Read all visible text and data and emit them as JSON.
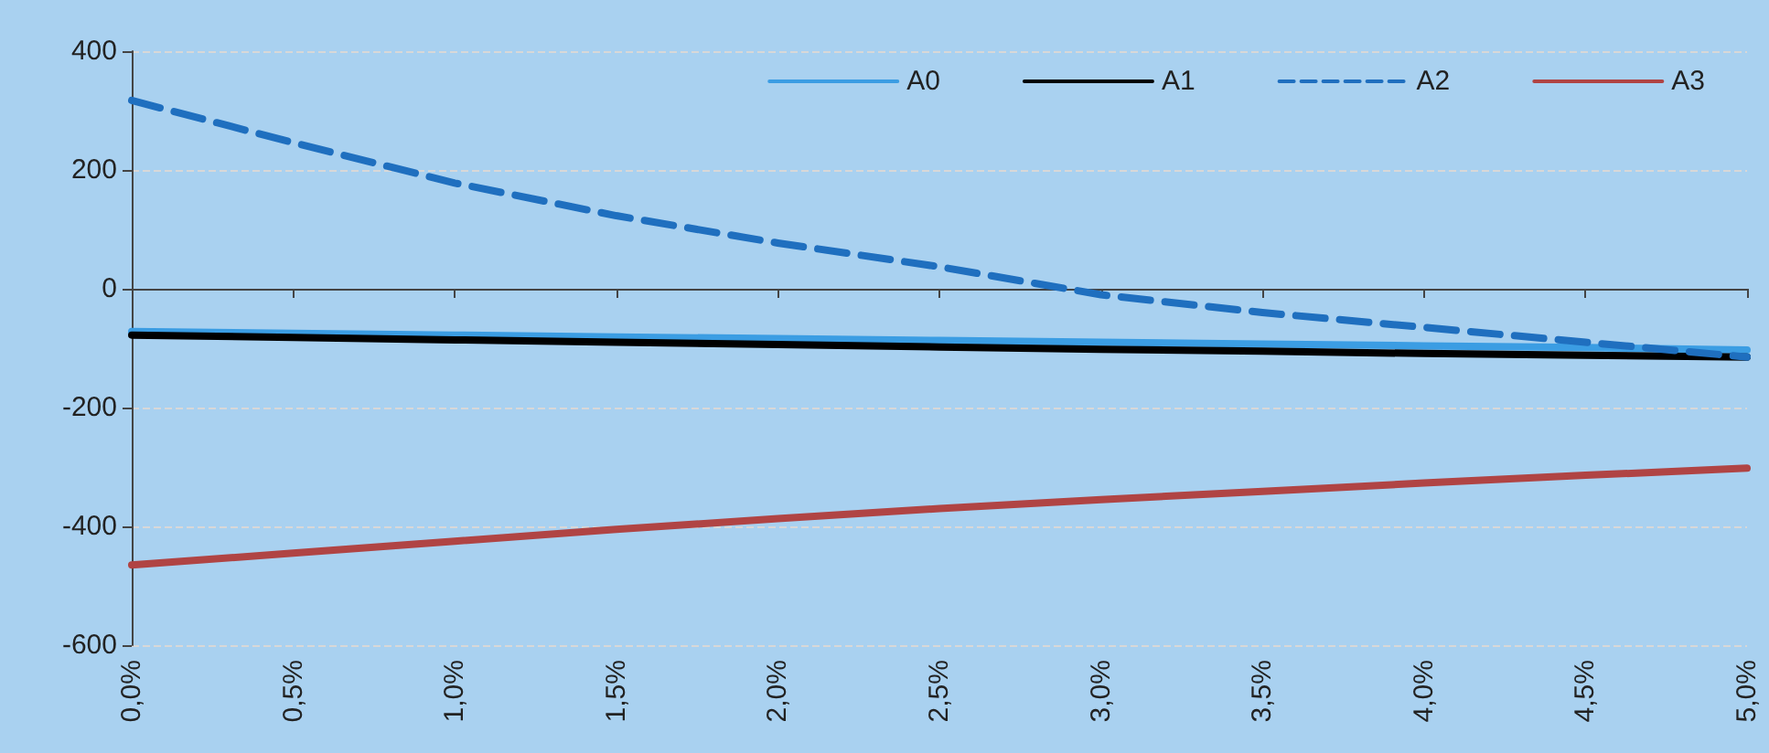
{
  "chart_data": {
    "type": "line",
    "categories": [
      "0,0%",
      "0,5%",
      "1,0%",
      "1,5%",
      "2,0%",
      "2,5%",
      "3,0%",
      "3,5%",
      "4,0%",
      "4,5%",
      "5,0%"
    ],
    "series": [
      {
        "name": "A0",
        "color": "#3b9de3",
        "values": [
          -72,
          -75,
          -78,
          -81,
          -84,
          -87,
          -90,
          -93,
          -96,
          -99,
          -103
        ]
      },
      {
        "name": "A1",
        "color": "#000000",
        "values": [
          -78,
          -82,
          -86,
          -90,
          -94,
          -98,
          -102,
          -105,
          -109,
          -112,
          -115
        ]
      },
      {
        "name": "A2",
        "color": "#1f6fbf",
        "line_style": "dashed",
        "values": [
          317,
          246,
          178,
          123,
          77,
          37,
          -10,
          -40,
          -65,
          -90,
          -115
        ]
      },
      {
        "name": "A3",
        "color": "#b04444",
        "values": [
          -465,
          -445,
          -425,
          -405,
          -387,
          -370,
          -355,
          -341,
          -327,
          -314,
          -302
        ]
      }
    ],
    "ylim": [
      -600,
      400
    ],
    "yticks": [
      -600,
      -400,
      -200,
      0,
      200,
      400
    ],
    "grid": "y",
    "legend": "top right",
    "marker": "none"
  }
}
